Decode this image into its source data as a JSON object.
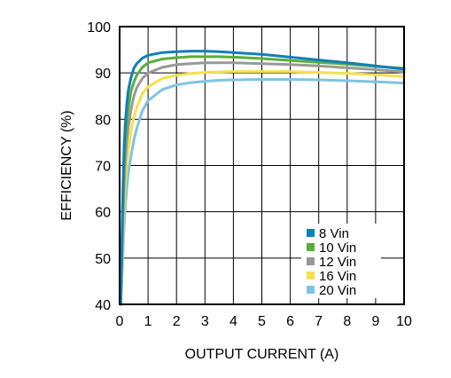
{
  "chart_data": {
    "type": "line",
    "title": "",
    "xlabel": "OUTPUT CURRENT (A)",
    "ylabel": "EFFICIENCY (%)",
    "xlim": [
      0,
      10
    ],
    "ylim": [
      40,
      100
    ],
    "x_ticks": [
      0,
      1,
      2,
      3,
      4,
      5,
      6,
      7,
      8,
      9,
      10
    ],
    "y_ticks": [
      40,
      50,
      60,
      70,
      80,
      90,
      100
    ],
    "x_tick_labels": [
      "0",
      "1",
      "2",
      "3",
      "4",
      "5",
      "6",
      "7",
      "8",
      "9",
      "10"
    ],
    "y_tick_labels": [
      "40",
      "50",
      "60",
      "70",
      "80",
      "90",
      "100"
    ],
    "grid": true,
    "legend_position": "bottom-right",
    "series": [
      {
        "name": "8 Vin",
        "color": "#0f7fb8",
        "x": [
          0.04,
          0.08,
          0.12,
          0.16,
          0.2,
          0.25,
          0.3,
          0.4,
          0.5,
          0.6,
          0.8,
          1,
          1.5,
          2,
          2.5,
          3,
          3.5,
          4,
          5,
          6,
          7,
          8,
          9,
          10
        ],
        "y": [
          40,
          55,
          66,
          74,
          79,
          83,
          86,
          89,
          91,
          92,
          93.2,
          93.8,
          94.4,
          94.6,
          94.7,
          94.7,
          94.6,
          94.4,
          94,
          93.4,
          92.8,
          92.2,
          91.5,
          90.8
        ]
      },
      {
        "name": "10 Vin",
        "color": "#5aad3a",
        "x": [
          0.04,
          0.08,
          0.12,
          0.16,
          0.2,
          0.25,
          0.3,
          0.4,
          0.5,
          0.6,
          0.8,
          1,
          1.5,
          2,
          2.5,
          3,
          3.5,
          4,
          5,
          6,
          7,
          8,
          9,
          10
        ],
        "y": [
          40,
          52,
          62,
          70,
          75,
          79,
          82,
          86,
          88,
          89.5,
          91.2,
          92.2,
          93,
          93.3,
          93.5,
          93.5,
          93.5,
          93.4,
          93.1,
          92.7,
          92.3,
          91.9,
          91.4,
          91
        ]
      },
      {
        "name": "12 Vin",
        "color": "#999999",
        "x": [
          0.04,
          0.08,
          0.12,
          0.16,
          0.2,
          0.25,
          0.3,
          0.4,
          0.5,
          0.6,
          0.8,
          1,
          1.5,
          2,
          2.5,
          3,
          3.5,
          4,
          5,
          6,
          7,
          8,
          9,
          10
        ],
        "y": [
          40,
          50,
          59,
          66,
          71,
          75,
          78,
          82,
          85,
          86.8,
          88.8,
          90,
          91.2,
          91.8,
          92,
          92.2,
          92.2,
          92.2,
          92,
          91.8,
          91.5,
          91.1,
          90.7,
          90.2
        ]
      },
      {
        "name": "16 Vin",
        "color": "#f5e04a",
        "x": [
          0.04,
          0.08,
          0.12,
          0.16,
          0.2,
          0.25,
          0.3,
          0.4,
          0.5,
          0.6,
          0.8,
          1,
          1.5,
          2,
          2.5,
          3,
          3.5,
          4,
          5,
          6,
          7,
          8,
          9,
          10
        ],
        "y": [
          40,
          48,
          55,
          61,
          66,
          70,
          73,
          77.5,
          80.5,
          82.5,
          85.5,
          87,
          88.8,
          89.5,
          89.9,
          90.1,
          90.2,
          90.3,
          90.3,
          90.3,
          90.1,
          89.9,
          89.6,
          89.2
        ]
      },
      {
        "name": "20 Vin",
        "color": "#7fc3e4",
        "x": [
          0.04,
          0.08,
          0.12,
          0.16,
          0.2,
          0.25,
          0.3,
          0.4,
          0.5,
          0.6,
          0.8,
          1,
          1.5,
          2,
          2.5,
          3,
          3.5,
          4,
          5,
          6,
          7,
          8,
          9,
          10
        ],
        "y": [
          40,
          46,
          52,
          57,
          61,
          65,
          68,
          72,
          75.5,
          78,
          81.8,
          84,
          86.4,
          87.4,
          87.9,
          88.2,
          88.4,
          88.5,
          88.6,
          88.6,
          88.5,
          88.3,
          88.1,
          87.8
        ]
      }
    ]
  }
}
